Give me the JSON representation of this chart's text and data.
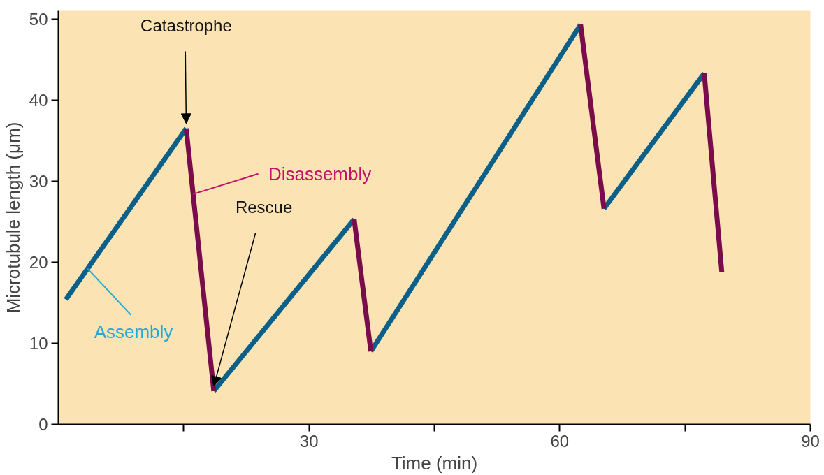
{
  "chart_data": {
    "type": "line",
    "xlabel": "Time (min)",
    "ylabel": "Microtubule length (μm)",
    "xlim": [
      0,
      90
    ],
    "ylim": [
      0,
      51
    ],
    "xticks": [
      {
        "value": 15,
        "label": null
      },
      30,
      {
        "value": 45,
        "label": null
      },
      60,
      {
        "value": 75,
        "label": null
      },
      90
    ],
    "yticks": [
      0,
      10,
      20,
      30,
      40,
      50
    ],
    "grid": false,
    "marker": "none",
    "line_style": "solid",
    "series": [
      {
        "name": "Assembly",
        "color": "#0a6089",
        "x": [
          0.9,
          15.3,
          null,
          18.6,
          35.4,
          null,
          37.4,
          62.5,
          null,
          65.3,
          77.3
        ],
        "values": [
          15.4,
          36.5,
          null,
          4.1,
          25.3,
          null,
          9.0,
          49.3,
          null,
          26.6,
          43.3
        ]
      },
      {
        "name": "Disassembly",
        "color": "#7a0c4c",
        "x": [
          15.3,
          18.6,
          null,
          35.4,
          37.4,
          null,
          62.5,
          65.3,
          null,
          77.3,
          79.4
        ],
        "values": [
          36.5,
          4.1,
          null,
          25.3,
          9.0,
          null,
          49.3,
          26.6,
          null,
          43.3,
          18.8
        ]
      }
    ],
    "annotations": [
      {
        "text": "Catastrophe",
        "x": 15.3,
        "y": 36.5
      },
      {
        "text": "Rescue",
        "x": 18.6,
        "y": 4.1
      }
    ]
  }
}
